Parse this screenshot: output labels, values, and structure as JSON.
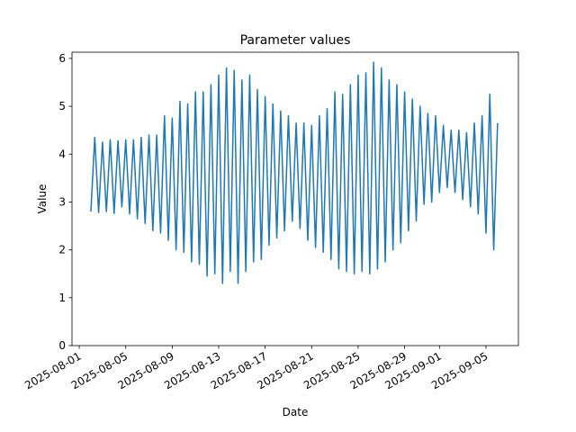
{
  "chart_data": {
    "type": "line",
    "title": "Parameter values",
    "x_label": "Date",
    "y_label": "Value",
    "x": [
      "2025-08-02T00:00",
      "2025-08-02T08:00",
      "2025-08-02T16:00",
      "2025-08-03T00:00",
      "2025-08-03T08:00",
      "2025-08-03T16:00",
      "2025-08-04T00:00",
      "2025-08-04T08:00",
      "2025-08-04T16:00",
      "2025-08-05T00:00",
      "2025-08-05T08:00",
      "2025-08-05T16:00",
      "2025-08-06T00:00",
      "2025-08-06T08:00",
      "2025-08-06T16:00",
      "2025-08-07T00:00",
      "2025-08-07T08:00",
      "2025-08-07T16:00",
      "2025-08-08T00:00",
      "2025-08-08T08:00",
      "2025-08-08T16:00",
      "2025-08-09T00:00",
      "2025-08-09T08:00",
      "2025-08-09T16:00",
      "2025-08-10T00:00",
      "2025-08-10T08:00",
      "2025-08-10T16:00",
      "2025-08-11T00:00",
      "2025-08-11T08:00",
      "2025-08-11T16:00",
      "2025-08-12T00:00",
      "2025-08-12T08:00",
      "2025-08-12T16:00",
      "2025-08-13T00:00",
      "2025-08-13T08:00",
      "2025-08-13T16:00",
      "2025-08-14T00:00",
      "2025-08-14T08:00",
      "2025-08-14T16:00",
      "2025-08-15T00:00",
      "2025-08-15T08:00",
      "2025-08-15T16:00",
      "2025-08-16T00:00",
      "2025-08-16T08:00",
      "2025-08-16T16:00",
      "2025-08-17T00:00",
      "2025-08-17T08:00",
      "2025-08-17T16:00",
      "2025-08-18T00:00",
      "2025-08-18T08:00",
      "2025-08-18T16:00",
      "2025-08-19T00:00",
      "2025-08-19T08:00",
      "2025-08-19T16:00",
      "2025-08-20T00:00",
      "2025-08-20T08:00",
      "2025-08-20T16:00",
      "2025-08-21T00:00",
      "2025-08-21T08:00",
      "2025-08-21T16:00",
      "2025-08-22T00:00",
      "2025-08-22T08:00",
      "2025-08-22T16:00",
      "2025-08-23T00:00",
      "2025-08-23T08:00",
      "2025-08-23T16:00",
      "2025-08-24T00:00",
      "2025-08-24T08:00",
      "2025-08-24T16:00",
      "2025-08-25T00:00",
      "2025-08-25T08:00",
      "2025-08-25T16:00",
      "2025-08-26T00:00",
      "2025-08-26T08:00",
      "2025-08-26T16:00",
      "2025-08-27T00:00",
      "2025-08-27T08:00",
      "2025-08-27T16:00",
      "2025-08-28T00:00",
      "2025-08-28T08:00",
      "2025-08-28T16:00",
      "2025-08-29T00:00",
      "2025-08-29T08:00",
      "2025-08-29T16:00",
      "2025-08-30T00:00",
      "2025-08-30T08:00",
      "2025-08-30T16:00",
      "2025-08-31T00:00",
      "2025-08-31T08:00",
      "2025-08-31T16:00",
      "2025-09-01T00:00",
      "2025-09-01T08:00",
      "2025-09-01T16:00",
      "2025-09-02T00:00",
      "2025-09-02T08:00",
      "2025-09-02T16:00",
      "2025-09-03T00:00",
      "2025-09-03T08:00",
      "2025-09-03T16:00",
      "2025-09-04T00:00",
      "2025-09-04T08:00",
      "2025-09-04T16:00",
      "2025-09-05T00:00",
      "2025-09-05T08:00",
      "2025-09-05T16:00",
      "2025-09-06T00:00"
    ],
    "series": [
      {
        "color": "#1f77b4",
        "values": [
          2.8,
          4.35,
          2.78,
          4.25,
          2.8,
          4.3,
          2.76,
          4.28,
          2.9,
          4.3,
          2.75,
          4.3,
          2.65,
          4.35,
          2.55,
          4.4,
          2.4,
          4.4,
          2.35,
          4.8,
          2.2,
          4.75,
          2.0,
          5.1,
          1.95,
          5.05,
          1.75,
          5.3,
          1.7,
          5.3,
          1.45,
          5.45,
          1.5,
          5.65,
          1.3,
          5.8,
          1.55,
          5.75,
          1.3,
          5.55,
          1.55,
          5.65,
          1.75,
          5.35,
          1.8,
          5.2,
          2.1,
          5.05,
          2.25,
          4.9,
          2.4,
          4.8,
          2.6,
          4.65,
          2.45,
          4.65,
          2.2,
          4.6,
          2.05,
          4.8,
          1.95,
          4.95,
          1.8,
          5.3,
          1.6,
          5.25,
          1.55,
          5.45,
          1.5,
          5.65,
          1.55,
          5.7,
          1.5,
          5.92,
          1.6,
          5.8,
          1.75,
          5.55,
          2.0,
          5.45,
          2.15,
          5.3,
          2.4,
          5.15,
          2.6,
          5.0,
          2.95,
          4.85,
          3.0,
          4.8,
          3.2,
          4.6,
          3.3,
          4.5,
          3.2,
          4.5,
          3.05,
          4.45,
          2.9,
          4.65,
          2.75,
          4.8,
          2.35,
          5.25,
          2.0,
          4.65
        ]
      }
    ],
    "xlim": [
      "2025-07-31T09:00",
      "2025-09-07T19:00"
    ],
    "xticks": [
      "2025-08-01",
      "2025-08-05",
      "2025-08-09",
      "2025-08-13",
      "2025-08-17",
      "2025-08-21",
      "2025-08-25",
      "2025-08-29",
      "2025-09-01",
      "2025-09-05"
    ],
    "ylim": [
      0,
      6.13
    ],
    "yticks": [
      0,
      1,
      2,
      3,
      4,
      5,
      6
    ]
  }
}
